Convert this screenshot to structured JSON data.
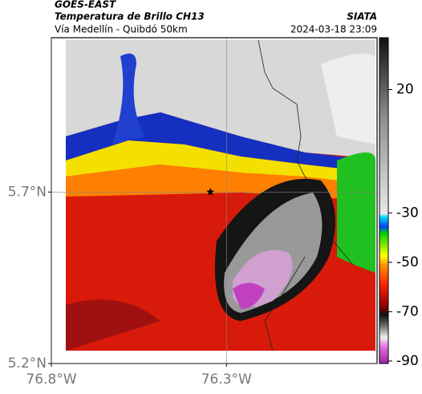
{
  "chart_data": {
    "type": "map",
    "title": "GOES-EAST",
    "subtitle": "Temperatura de Brillo CH13",
    "region": "Vía Medellín - Quibdó 50km",
    "source": "SIATA",
    "timestamp": "2024-03-18 23:09",
    "xlim": [
      -76.8,
      -75.87
    ],
    "ylim": [
      5.2,
      6.15
    ],
    "xticks": [
      {
        "value": -76.8,
        "label": "76.8°W"
      },
      {
        "value": -76.3,
        "label": "76.3°W"
      }
    ],
    "yticks": [
      {
        "value": 5.2,
        "label": "5.2°N"
      },
      {
        "value": 5.7,
        "label": "5.7°N"
      }
    ],
    "grid": true,
    "marker": {
      "lon": -76.346,
      "lat": 5.7
    },
    "clim": [
      -91,
      41
    ],
    "cticks": [
      -90,
      -70,
      -50,
      -30,
      20
    ]
  }
}
